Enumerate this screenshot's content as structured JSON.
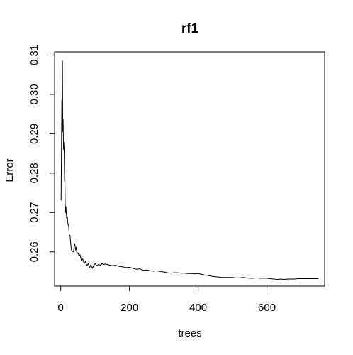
{
  "chart_data": {
    "type": "line",
    "title": "rf1",
    "xlabel": "trees",
    "ylabel": "Error",
    "xlim": [
      -18,
      768
    ],
    "ylim": [
      0.2513,
      0.3108
    ],
    "xticks": [
      0,
      200,
      400,
      600
    ],
    "yticks": [
      0.26,
      0.27,
      0.28,
      0.29,
      0.3,
      0.31
    ],
    "xtick_labels": [
      "0",
      "200",
      "400",
      "600"
    ],
    "ytick_labels": [
      "0.26",
      "0.27",
      "0.28",
      "0.29",
      "0.30",
      "0.31"
    ],
    "grid": false,
    "legend": "none",
    "line_color": "#000000",
    "series": [
      {
        "x": [
          1,
          2,
          3,
          4,
          5,
          6,
          7,
          8,
          9,
          10,
          11,
          12,
          13,
          14,
          15,
          17,
          19,
          21,
          23,
          25,
          27,
          29,
          31,
          33,
          35,
          37,
          39,
          41,
          43,
          45,
          47,
          50,
          53,
          56,
          60,
          64,
          68,
          72,
          76,
          80,
          84,
          88,
          92,
          96,
          100,
          105,
          110,
          115,
          120,
          125,
          130,
          140,
          150,
          160,
          170,
          180,
          190,
          200,
          210,
          220,
          230,
          240,
          250,
          260,
          270,
          280,
          290,
          300,
          310,
          320,
          330,
          340,
          350,
          360,
          370,
          380,
          390,
          400,
          410,
          420,
          430,
          440,
          450,
          460,
          470,
          480,
          490,
          500,
          510,
          520,
          530,
          540,
          550,
          560,
          570,
          580,
          590,
          600,
          610,
          620,
          630,
          640,
          650,
          660,
          670,
          680,
          690,
          700,
          710,
          720,
          730,
          740,
          750
        ],
        "y": [
          0.2731,
          0.286,
          0.2985,
          0.2933,
          0.3085,
          0.2905,
          0.2935,
          0.286,
          0.2878,
          0.2852,
          0.278,
          0.2795,
          0.272,
          0.27,
          0.2715,
          0.2685,
          0.269,
          0.267,
          0.2665,
          0.264,
          0.2642,
          0.262,
          0.2605,
          0.26,
          0.2602,
          0.26,
          0.2615,
          0.262,
          0.2605,
          0.2612,
          0.2595,
          0.2598,
          0.259,
          0.2593,
          0.2578,
          0.2582,
          0.257,
          0.2576,
          0.2565,
          0.257,
          0.256,
          0.2568,
          0.2558,
          0.2566,
          0.257,
          0.2565,
          0.2568,
          0.2566,
          0.257,
          0.2568,
          0.2569,
          0.2567,
          0.2565,
          0.2566,
          0.2563,
          0.2562,
          0.256,
          0.2561,
          0.2558,
          0.2556,
          0.2557,
          0.2553,
          0.2554,
          0.2552,
          0.2551,
          0.2552,
          0.255,
          0.2549,
          0.2547,
          0.2546,
          0.2547,
          0.2547,
          0.2546,
          0.2546,
          0.2545,
          0.2545,
          0.2544,
          0.2545,
          0.2543,
          0.2541,
          0.254,
          0.2538,
          0.2537,
          0.2536,
          0.2535,
          0.2535,
          0.2535,
          0.2535,
          0.2534,
          0.2534,
          0.2535,
          0.2534,
          0.2533,
          0.2533,
          0.2534,
          0.2533,
          0.2533,
          0.2533,
          0.2532,
          0.2531,
          0.253,
          0.2531,
          0.253,
          0.2531,
          0.2531,
          0.2531,
          0.2532,
          0.2532,
          0.2532,
          0.2532,
          0.2532,
          0.2532,
          0.2532
        ]
      }
    ]
  }
}
